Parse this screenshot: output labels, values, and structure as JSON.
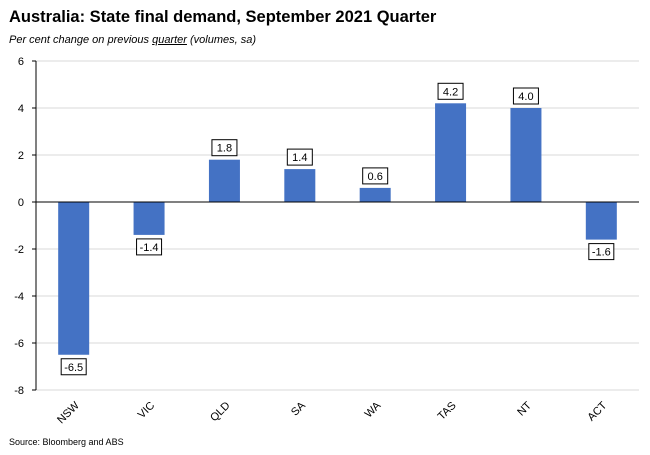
{
  "chart_data": {
    "type": "bar",
    "title": "Australia: State final demand, September 2021 Quarter",
    "subtitle_prefix": "Per cent change on previous ",
    "subtitle_underlined": "quarter",
    "subtitle_suffix": " (volumes, sa)",
    "source": "Source: Bloomberg and ABS",
    "categories": [
      "NSW",
      "VIC",
      "QLD",
      "SA",
      "WA",
      "TAS",
      "NT",
      "ACT"
    ],
    "values": [
      -6.5,
      -1.4,
      1.8,
      1.4,
      0.6,
      4.2,
      4.0,
      -1.6
    ],
    "value_labels": [
      "-6.5",
      "-1.4",
      "1.8",
      "1.4",
      "0.6",
      "4.2",
      "4.0",
      "-1.6"
    ],
    "ylim": [
      -8,
      6
    ],
    "yticks": [
      "6",
      "4",
      "2",
      "0",
      "-2",
      "-4",
      "-6",
      "-8"
    ],
    "ytick_values": [
      6,
      4,
      2,
      0,
      -2,
      -4,
      -6,
      -8
    ],
    "grid": true,
    "bar_color": "#4472c4",
    "grid_color": "#d9d9d9"
  }
}
